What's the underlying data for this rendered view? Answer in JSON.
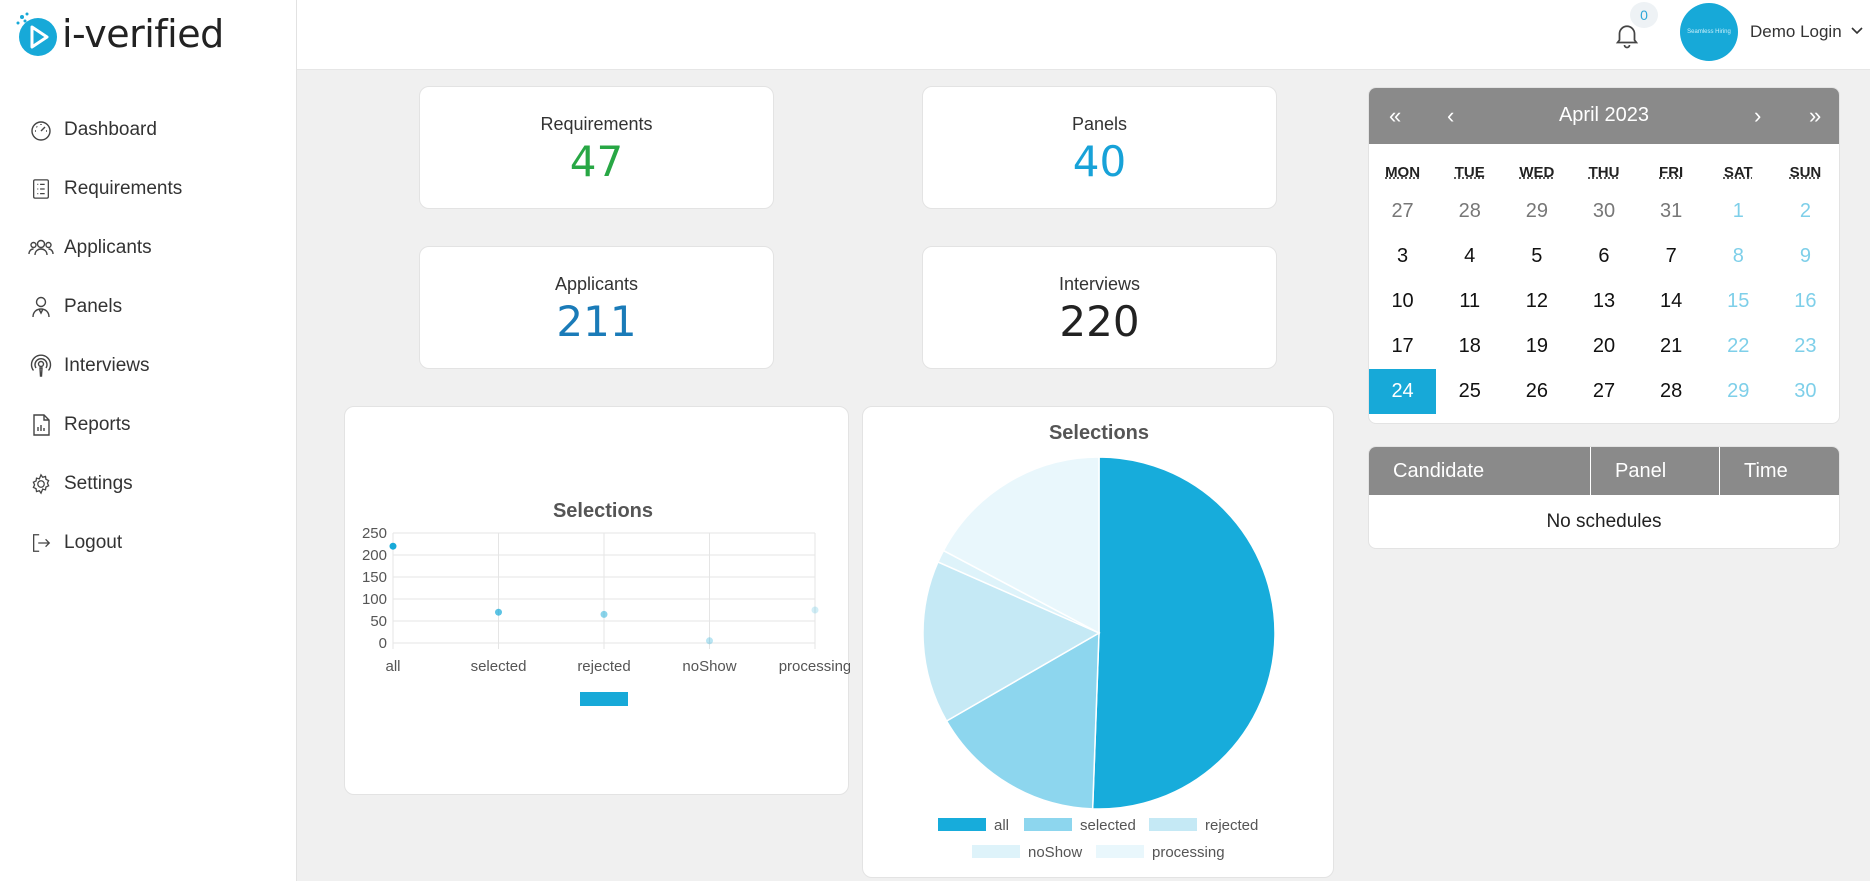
{
  "brand": {
    "name": "i-verified",
    "accent": "#17a9d8"
  },
  "sidebar": {
    "items": [
      {
        "label": "Dashboard",
        "icon": "gauge-icon"
      },
      {
        "label": "Requirements",
        "icon": "checklist-icon"
      },
      {
        "label": "Applicants",
        "icon": "users-icon"
      },
      {
        "label": "Panels",
        "icon": "panel-user-icon"
      },
      {
        "label": "Interviews",
        "icon": "podcast-icon"
      },
      {
        "label": "Reports",
        "icon": "report-icon"
      },
      {
        "label": "Settings",
        "icon": "gear-icon"
      },
      {
        "label": "Logout",
        "icon": "logout-icon"
      }
    ]
  },
  "topbar": {
    "notification_count": "0",
    "avatar_text": "Seamless Hiring",
    "user_name": "Demo Login"
  },
  "stats": {
    "requirements": {
      "title": "Requirements",
      "value": "47",
      "color": "#28a745"
    },
    "panels": {
      "title": "Panels",
      "value": "40",
      "color": "#17a2d8"
    },
    "applicants": {
      "title": "Applicants",
      "value": "211",
      "color": "#1a7bb8"
    },
    "interviews": {
      "title": "Interviews",
      "value": "220",
      "color": "#222222"
    }
  },
  "calendar": {
    "title": "April 2023",
    "nav": {
      "prev_year": "«",
      "prev_month": "‹",
      "next_month": "›",
      "next_year": "»"
    },
    "weekdays": [
      "MON",
      "TUE",
      "WED",
      "THU",
      "FRI",
      "SAT",
      "SUN"
    ],
    "days": [
      {
        "d": "27",
        "t": "other"
      },
      {
        "d": "28",
        "t": "other"
      },
      {
        "d": "29",
        "t": "other"
      },
      {
        "d": "30",
        "t": "other"
      },
      {
        "d": "31",
        "t": "other"
      },
      {
        "d": "1",
        "t": "weekend"
      },
      {
        "d": "2",
        "t": "weekend"
      },
      {
        "d": "3",
        "t": ""
      },
      {
        "d": "4",
        "t": ""
      },
      {
        "d": "5",
        "t": ""
      },
      {
        "d": "6",
        "t": ""
      },
      {
        "d": "7",
        "t": ""
      },
      {
        "d": "8",
        "t": "weekend"
      },
      {
        "d": "9",
        "t": "weekend"
      },
      {
        "d": "10",
        "t": ""
      },
      {
        "d": "11",
        "t": ""
      },
      {
        "d": "12",
        "t": ""
      },
      {
        "d": "13",
        "t": ""
      },
      {
        "d": "14",
        "t": ""
      },
      {
        "d": "15",
        "t": "weekend"
      },
      {
        "d": "16",
        "t": "weekend"
      },
      {
        "d": "17",
        "t": ""
      },
      {
        "d": "18",
        "t": ""
      },
      {
        "d": "19",
        "t": ""
      },
      {
        "d": "20",
        "t": ""
      },
      {
        "d": "21",
        "t": ""
      },
      {
        "d": "22",
        "t": "weekend"
      },
      {
        "d": "23",
        "t": "weekend"
      },
      {
        "d": "24",
        "t": "today"
      },
      {
        "d": "25",
        "t": ""
      },
      {
        "d": "26",
        "t": ""
      },
      {
        "d": "27",
        "t": ""
      },
      {
        "d": "28",
        "t": ""
      },
      {
        "d": "29",
        "t": "weekend"
      },
      {
        "d": "30",
        "t": "weekend"
      }
    ]
  },
  "schedule": {
    "columns": [
      "Candidate",
      "Panel",
      "Time"
    ],
    "empty_text": "No schedules"
  },
  "chart_data": [
    {
      "type": "line",
      "title": "Selections",
      "categories": [
        "all",
        "selected",
        "rejected",
        "noShow",
        "processing"
      ],
      "values": [
        220,
        70,
        65,
        5,
        75
      ],
      "ylim": [
        0,
        250
      ],
      "yticks": [
        0,
        50,
        100,
        150,
        200,
        250
      ],
      "grid": true,
      "legend": "bottom",
      "color": "#17a9d8"
    },
    {
      "type": "pie",
      "title": "Selections",
      "labels": [
        "all",
        "selected",
        "rejected",
        "noShow",
        "processing"
      ],
      "values": [
        220,
        70,
        65,
        5,
        75
      ],
      "colors": [
        "#17acdb",
        "#8dd6ee",
        "#c5e9f5",
        "#def3fa",
        "#e9f7fc"
      ],
      "legend": "bottom"
    }
  ]
}
